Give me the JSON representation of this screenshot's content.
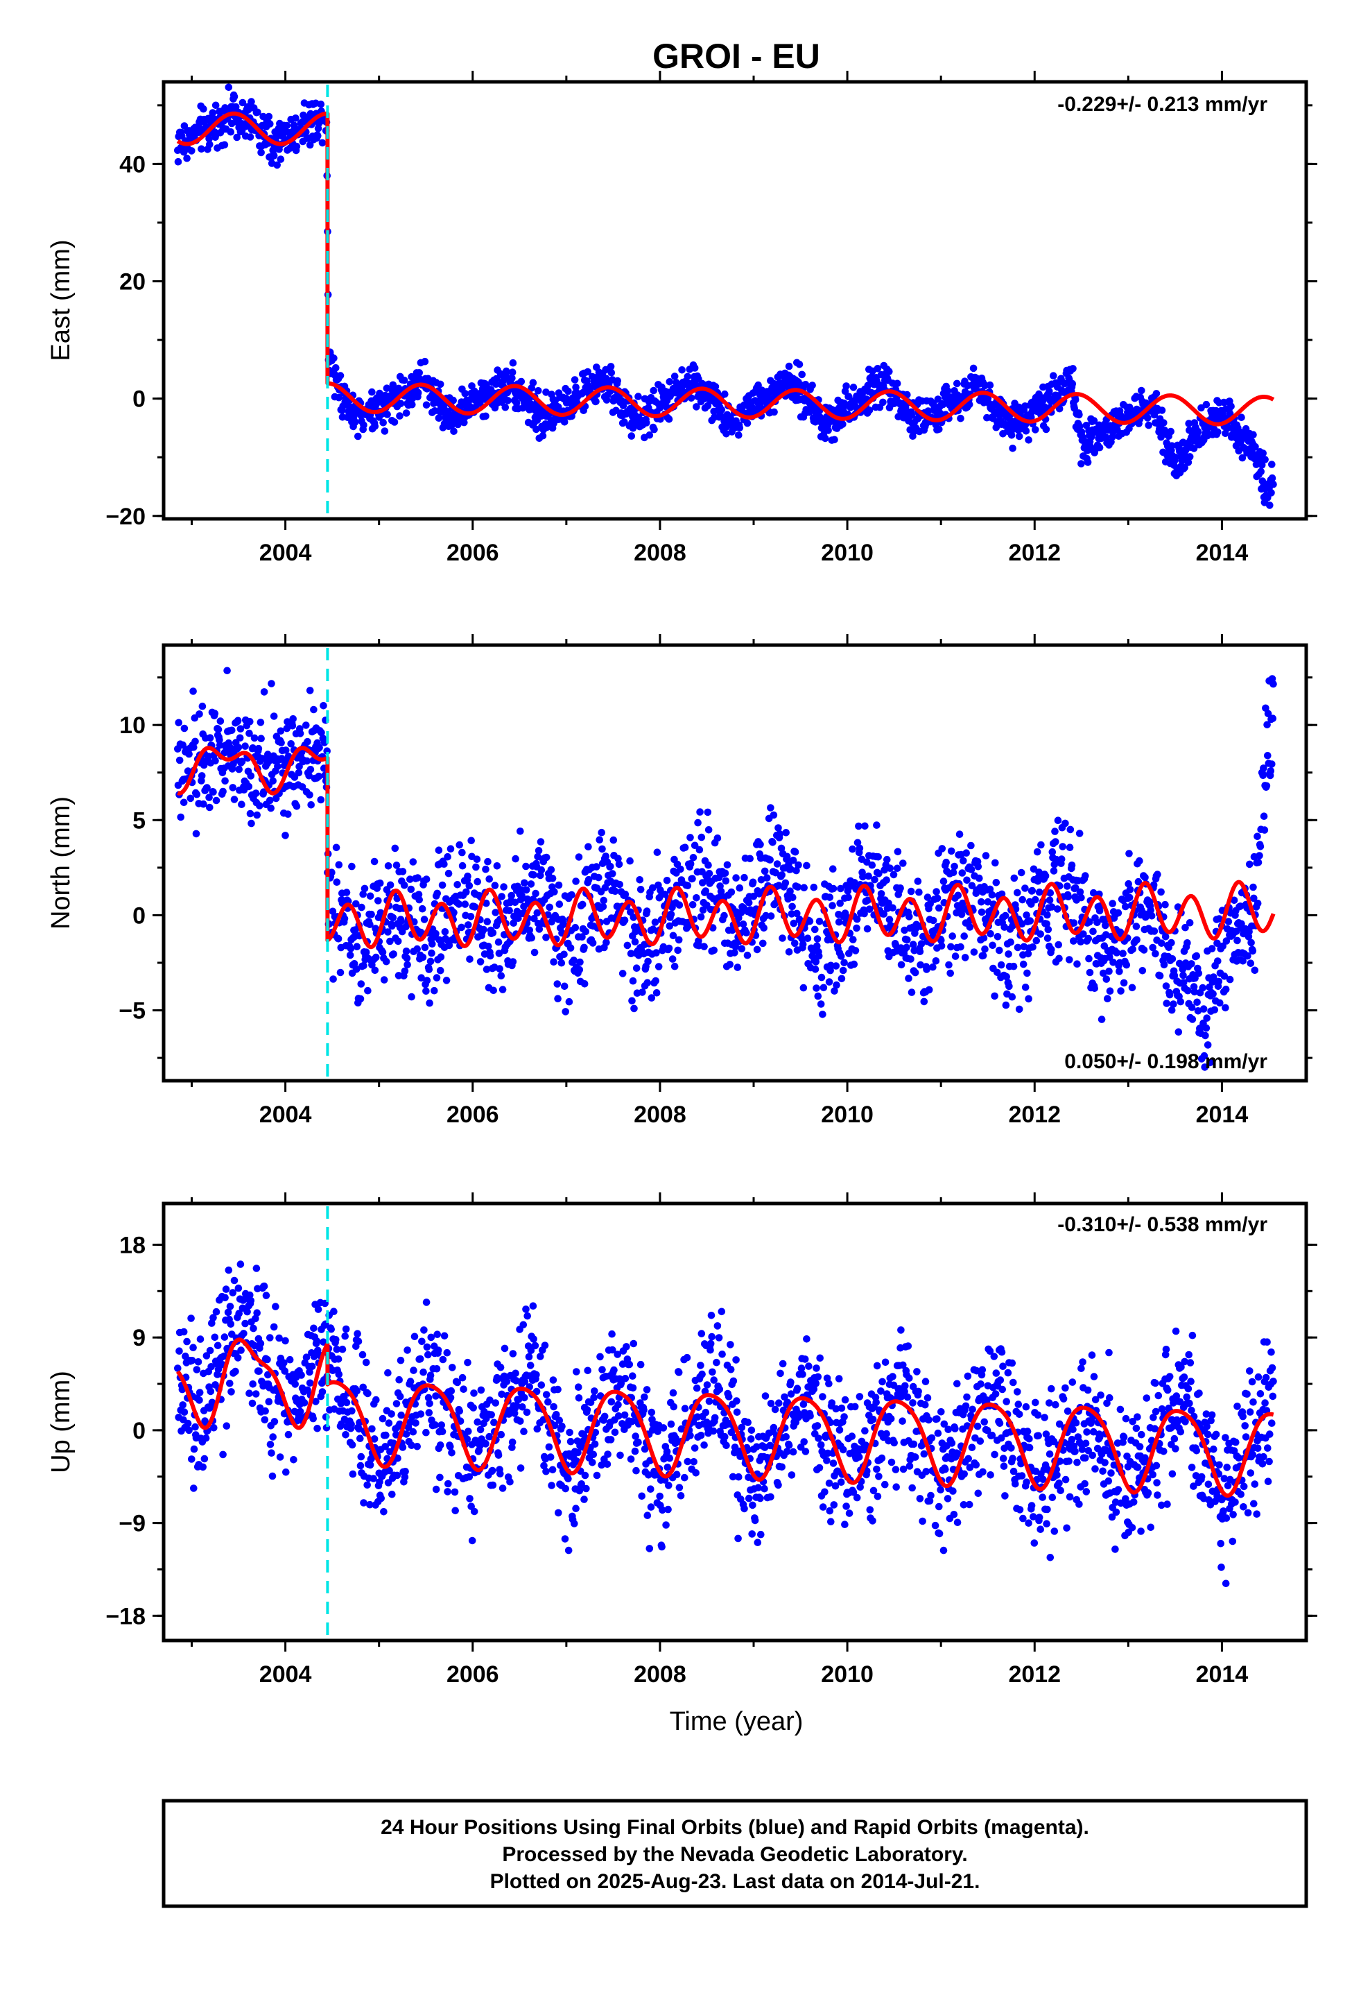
{
  "title": "GROI - EU",
  "xlabel": "Time (year)",
  "caption": [
    "24 Hour Positions Using Final Orbits (blue) and Rapid Orbits (magenta).",
    "Processed by the Nevada Geodetic Laboratory.",
    "Plotted on 2025-Aug-23. Last data on 2014-Jul-21."
  ],
  "colors": {
    "final_orbits": "#0000ff",
    "model": "#ff0000",
    "offset_line": "#00e5e5"
  },
  "chart_data": [
    {
      "type": "scatter",
      "ylabel": "East (mm)",
      "rate": "-0.229+/- 0.213 mm/yr",
      "xlim": [
        2002.7,
        2014.9
      ],
      "ylim": [
        -20.5,
        54
      ],
      "yticks": [
        -20,
        0,
        20,
        40
      ],
      "xticks": [
        2004,
        2006,
        2008,
        2010,
        2012,
        2014
      ],
      "equipment_change": 2004.45,
      "data_span": [
        2002.85,
        2014.55
      ],
      "series": [
        {
          "values": [
            [
              2002.85,
              43
            ],
            [
              2003.0,
              44.5
            ],
            [
              2003.2,
              46.5
            ],
            [
              2003.45,
              49
            ],
            [
              2003.65,
              47
            ],
            [
              2003.85,
              43.5
            ],
            [
              2004.0,
              44.5
            ],
            [
              2004.2,
              46.5
            ],
            [
              2004.44,
              48.5
            ],
            [
              2004.46,
              8
            ],
            [
              2004.6,
              0.5
            ],
            [
              2004.8,
              -3
            ],
            [
              2005.0,
              -1.5
            ],
            [
              2005.3,
              1
            ],
            [
              2005.45,
              3
            ],
            [
              2005.75,
              -3
            ],
            [
              2006.0,
              -1
            ],
            [
              2006.4,
              3
            ],
            [
              2006.75,
              -3.5
            ],
            [
              2007.0,
              -1
            ],
            [
              2007.4,
              3
            ],
            [
              2007.75,
              -4
            ],
            [
              2008.0,
              -1
            ],
            [
              2008.4,
              3
            ],
            [
              2008.75,
              -4
            ],
            [
              2009.0,
              -1
            ],
            [
              2009.4,
              3
            ],
            [
              2009.75,
              -4
            ],
            [
              2010.0,
              -1.5
            ],
            [
              2010.4,
              3
            ],
            [
              2010.75,
              -4
            ],
            [
              2011.0,
              -2
            ],
            [
              2011.4,
              2.5
            ],
            [
              2011.75,
              -4.5
            ],
            [
              2012.0,
              -2
            ],
            [
              2012.4,
              2
            ],
            [
              2012.5,
              -8
            ],
            [
              2013.0,
              -3
            ],
            [
              2013.3,
              -1
            ],
            [
              2013.5,
              -12
            ],
            [
              2013.75,
              -6
            ],
            [
              2014.0,
              -2
            ],
            [
              2014.3,
              -8
            ],
            [
              2014.5,
              -15
            ]
          ]
        }
      ]
    },
    {
      "type": "scatter",
      "ylabel": "North (mm)",
      "rate": "0.050+/- 0.198 mm/yr",
      "xlim": [
        2002.7,
        2014.9
      ],
      "ylim": [
        -8.7,
        14.2
      ],
      "yticks": [
        -5,
        0,
        5,
        10
      ],
      "xticks": [
        2004,
        2006,
        2008,
        2010,
        2012,
        2014
      ],
      "equipment_change": 2004.45,
      "data_span": [
        2002.85,
        2014.55
      ],
      "series": [
        {
          "values": [
            [
              2002.85,
              7
            ],
            [
              2003.0,
              8.5
            ],
            [
              2003.2,
              7.5
            ],
            [
              2003.45,
              9
            ],
            [
              2003.65,
              7
            ],
            [
              2003.85,
              8.5
            ],
            [
              2004.0,
              7.5
            ],
            [
              2004.2,
              8.5
            ],
            [
              2004.44,
              9
            ],
            [
              2004.46,
              0.5
            ],
            [
              2004.8,
              -2
            ],
            [
              2005.2,
              0.5
            ],
            [
              2005.5,
              -1.5
            ],
            [
              2005.9,
              1
            ],
            [
              2006.3,
              -1
            ],
            [
              2006.7,
              1.5
            ],
            [
              2007.0,
              -1.5
            ],
            [
              2007.5,
              2
            ],
            [
              2007.8,
              -2
            ],
            [
              2008.5,
              2.5
            ],
            [
              2008.8,
              -1.5
            ],
            [
              2009.2,
              3
            ],
            [
              2009.7,
              -2
            ],
            [
              2010.2,
              2
            ],
            [
              2010.7,
              -1.5
            ],
            [
              2011.3,
              1.5
            ],
            [
              2011.7,
              -2
            ],
            [
              2012.3,
              2
            ],
            [
              2012.8,
              -2
            ],
            [
              2013.2,
              1
            ],
            [
              2013.5,
              -3
            ],
            [
              2013.8,
              -5
            ],
            [
              2014.0,
              -2
            ],
            [
              2014.35,
              0
            ],
            [
              2014.5,
              10
            ]
          ]
        }
      ]
    },
    {
      "type": "scatter",
      "ylabel": "Up (mm)",
      "rate": "-0.310+/- 0.538 mm/yr",
      "xlim": [
        2002.7,
        2014.9
      ],
      "ylim": [
        -20.4,
        22
      ],
      "yticks": [
        -18,
        -9,
        0,
        9,
        18
      ],
      "xticks": [
        2004,
        2006,
        2008,
        2010,
        2012,
        2014
      ],
      "equipment_change": 2004.45,
      "data_span": [
        2002.85,
        2014.55
      ],
      "series": [
        {
          "values": [
            [
              2002.85,
              4
            ],
            [
              2003.1,
              2.5
            ],
            [
              2003.3,
              5
            ],
            [
              2003.55,
              12
            ],
            [
              2003.8,
              6
            ],
            [
              2004.0,
              2
            ],
            [
              2004.3,
              6
            ],
            [
              2004.5,
              7
            ],
            [
              2005.0,
              -3
            ],
            [
              2005.5,
              5
            ],
            [
              2006.0,
              -3
            ],
            [
              2006.6,
              6
            ],
            [
              2007.0,
              -4
            ],
            [
              2007.6,
              4
            ],
            [
              2008.0,
              -5
            ],
            [
              2008.6,
              5
            ],
            [
              2009.0,
              -5
            ],
            [
              2009.6,
              4
            ],
            [
              2010.0,
              -5
            ],
            [
              2010.6,
              4
            ],
            [
              2011.0,
              -5
            ],
            [
              2011.6,
              4
            ],
            [
              2012.0,
              -6
            ],
            [
              2012.6,
              2
            ],
            [
              2013.0,
              -6
            ],
            [
              2013.6,
              4
            ],
            [
              2014.0,
              -7
            ],
            [
              2014.5,
              3
            ]
          ]
        }
      ]
    }
  ]
}
